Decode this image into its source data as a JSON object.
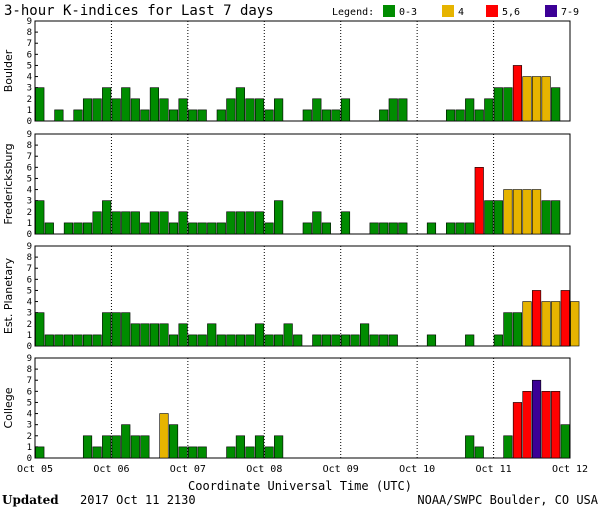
{
  "chart_data": {
    "type": "bar",
    "title": "3-hour K-indices for Last 7 days",
    "legend_title": "Legend:",
    "legend": [
      {
        "label": "0-3",
        "color": "#008c00"
      },
      {
        "label": "4",
        "color": "#e6b400"
      },
      {
        "label": "5,6",
        "color": "#ff0000"
      },
      {
        "label": "7-9",
        "color": "#3c0096"
      }
    ],
    "xlabel": "Coordinate Universal Time (UTC)",
    "x_ticks": [
      "Oct 05",
      "Oct 06",
      "Oct 07",
      "Oct 08",
      "Oct 09",
      "Oct 10",
      "Oct 11",
      "Oct 12"
    ],
    "y_ticks": [
      "0",
      "1",
      "2",
      "3",
      "4",
      "5",
      "6",
      "7",
      "8",
      "9"
    ],
    "ylim": [
      0,
      9
    ],
    "panels": [
      {
        "name": "Boulder",
        "values": [
          3,
          0,
          1,
          0,
          1,
          2,
          2,
          3,
          2,
          3,
          2,
          1,
          3,
          2,
          1,
          2,
          1,
          1,
          0,
          1,
          2,
          3,
          2,
          2,
          1,
          2,
          0,
          0,
          1,
          2,
          1,
          1,
          2,
          0,
          0,
          0,
          1,
          2,
          2,
          0,
          0,
          0,
          0,
          1,
          1,
          2,
          1,
          2,
          3,
          3,
          5,
          4,
          4,
          4,
          3,
          0
        ]
      },
      {
        "name": "Fredericksburg",
        "values": [
          3,
          1,
          0,
          1,
          1,
          1,
          2,
          3,
          2,
          2,
          2,
          1,
          2,
          2,
          1,
          2,
          1,
          1,
          1,
          1,
          2,
          2,
          2,
          2,
          1,
          3,
          0,
          0,
          1,
          2,
          1,
          0,
          2,
          0,
          0,
          1,
          1,
          1,
          1,
          0,
          0,
          1,
          0,
          1,
          1,
          1,
          6,
          3,
          3,
          4,
          4,
          4,
          4,
          3,
          3,
          0
        ]
      },
      {
        "name": "Est. Planetary",
        "values": [
          3,
          1,
          1,
          1,
          1,
          1,
          1,
          3,
          3,
          3,
          2,
          2,
          2,
          2,
          1,
          2,
          1,
          1,
          2,
          1,
          1,
          1,
          1,
          2,
          1,
          1,
          2,
          1,
          0,
          1,
          1,
          1,
          1,
          1,
          2,
          1,
          1,
          1,
          0,
          0,
          0,
          1,
          0,
          0,
          0,
          1,
          0,
          0,
          1,
          3,
          3,
          4,
          5,
          4,
          4,
          5,
          4
        ]
      },
      {
        "name": "College",
        "values": [
          1,
          0,
          0,
          0,
          0,
          2,
          1,
          2,
          2,
          3,
          2,
          2,
          0,
          4,
          3,
          1,
          1,
          1,
          0,
          0,
          1,
          2,
          1,
          2,
          1,
          2,
          0,
          0,
          0,
          0,
          0,
          0,
          0,
          0,
          0,
          0,
          0,
          0,
          0,
          0,
          0,
          0,
          0,
          0,
          0,
          2,
          1,
          0,
          0,
          2,
          5,
          6,
          7,
          6,
          6,
          3,
          0
        ]
      }
    ]
  },
  "footer": {
    "updated_label": "Updated",
    "updated_time": "2017 Oct 11 2130",
    "credit": "NOAA/SWPC Boulder, CO USA"
  }
}
